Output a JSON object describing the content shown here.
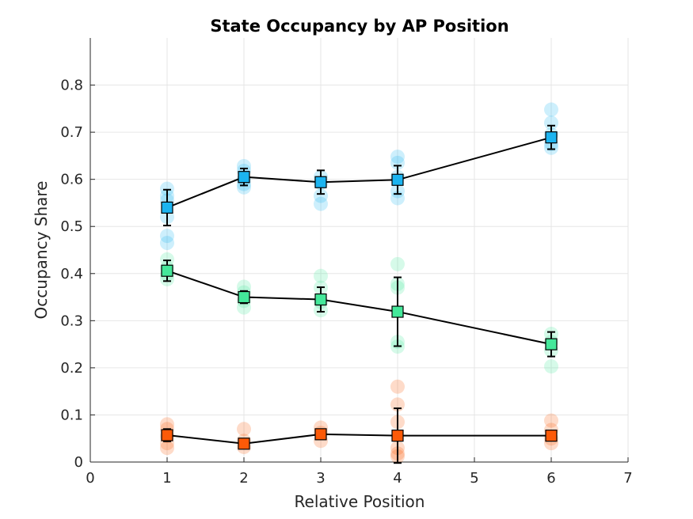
{
  "chart_data": {
    "type": "scatter",
    "title": "State Occupancy by AP Position",
    "xlabel": "Relative Position",
    "ylabel": "Occupancy Share",
    "xlim": [
      0,
      7
    ],
    "ylim": [
      0,
      0.9
    ],
    "xticks": [
      0,
      1,
      2,
      3,
      4,
      5,
      6,
      7
    ],
    "xtick_labels": [
      "0",
      "1",
      "2",
      "3",
      "4",
      "5",
      "6",
      "7"
    ],
    "yticks": [
      0,
      0.1,
      0.2,
      0.3,
      0.4,
      0.5,
      0.6,
      0.7,
      0.8
    ],
    "ytick_labels": [
      "0",
      "0.1",
      "0.2",
      "0.3",
      "0.4",
      "0.5",
      "0.6",
      "0.7",
      "0.8"
    ],
    "grid": true,
    "legend": "none",
    "series": [
      {
        "color": "#1cb4f0",
        "x": [
          1,
          2,
          3,
          4,
          6
        ],
        "mean": [
          0.54,
          0.605,
          0.594,
          0.599,
          0.689
        ],
        "err": [
          0.038,
          0.018,
          0.025,
          0.03,
          0.025
        ],
        "points": [
          [
            1,
            0.58
          ],
          [
            1,
            0.565
          ],
          [
            1,
            0.555
          ],
          [
            1,
            0.52
          ],
          [
            1,
            0.48
          ],
          [
            1,
            0.465
          ],
          [
            2,
            0.628
          ],
          [
            2,
            0.618
          ],
          [
            2,
            0.6
          ],
          [
            2,
            0.59
          ],
          [
            2,
            0.583
          ],
          [
            3,
            0.605
          ],
          [
            3,
            0.592
          ],
          [
            3,
            0.565
          ],
          [
            3,
            0.548
          ],
          [
            4,
            0.648
          ],
          [
            4,
            0.635
          ],
          [
            4,
            0.605
          ],
          [
            4,
            0.575
          ],
          [
            4,
            0.56
          ],
          [
            6,
            0.748
          ],
          [
            6,
            0.72
          ],
          [
            6,
            0.695
          ],
          [
            6,
            0.675
          ],
          [
            6,
            0.667
          ]
        ]
      },
      {
        "color": "#44e89a",
        "x": [
          1,
          2,
          3,
          4,
          6
        ],
        "mean": [
          0.406,
          0.35,
          0.345,
          0.319,
          0.25
        ],
        "err": [
          0.022,
          0.013,
          0.026,
          0.073,
          0.026
        ],
        "points": [
          [
            1,
            0.43
          ],
          [
            1,
            0.412
          ],
          [
            1,
            0.398
          ],
          [
            1,
            0.388
          ],
          [
            2,
            0.372
          ],
          [
            2,
            0.36
          ],
          [
            2,
            0.342
          ],
          [
            2,
            0.328
          ],
          [
            3,
            0.395
          ],
          [
            3,
            0.37
          ],
          [
            3,
            0.34
          ],
          [
            3,
            0.322
          ],
          [
            4,
            0.42
          ],
          [
            4,
            0.378
          ],
          [
            4,
            0.37
          ],
          [
            4,
            0.255
          ],
          [
            4,
            0.245
          ],
          [
            6,
            0.272
          ],
          [
            6,
            0.255
          ],
          [
            6,
            0.237
          ],
          [
            6,
            0.203
          ]
        ]
      },
      {
        "color": "#fc5a08",
        "x": [
          1,
          2,
          3,
          4,
          6
        ],
        "mean": [
          0.057,
          0.039,
          0.059,
          0.056,
          0.056
        ],
        "err": [
          0.013,
          0.007,
          0.008,
          0.058,
          0.007
        ],
        "points": [
          [
            1,
            0.08
          ],
          [
            1,
            0.07
          ],
          [
            1,
            0.055
          ],
          [
            1,
            0.04
          ],
          [
            1,
            0.03
          ],
          [
            2,
            0.07
          ],
          [
            2,
            0.045
          ],
          [
            2,
            0.032
          ],
          [
            3,
            0.073
          ],
          [
            3,
            0.062
          ],
          [
            3,
            0.045
          ],
          [
            4,
            0.16
          ],
          [
            4,
            0.122
          ],
          [
            4,
            0.085
          ],
          [
            4,
            0.03
          ],
          [
            4,
            0.018
          ],
          [
            4,
            0.012
          ],
          [
            6,
            0.088
          ],
          [
            6,
            0.068
          ],
          [
            6,
            0.05
          ],
          [
            6,
            0.04
          ]
        ]
      }
    ]
  }
}
